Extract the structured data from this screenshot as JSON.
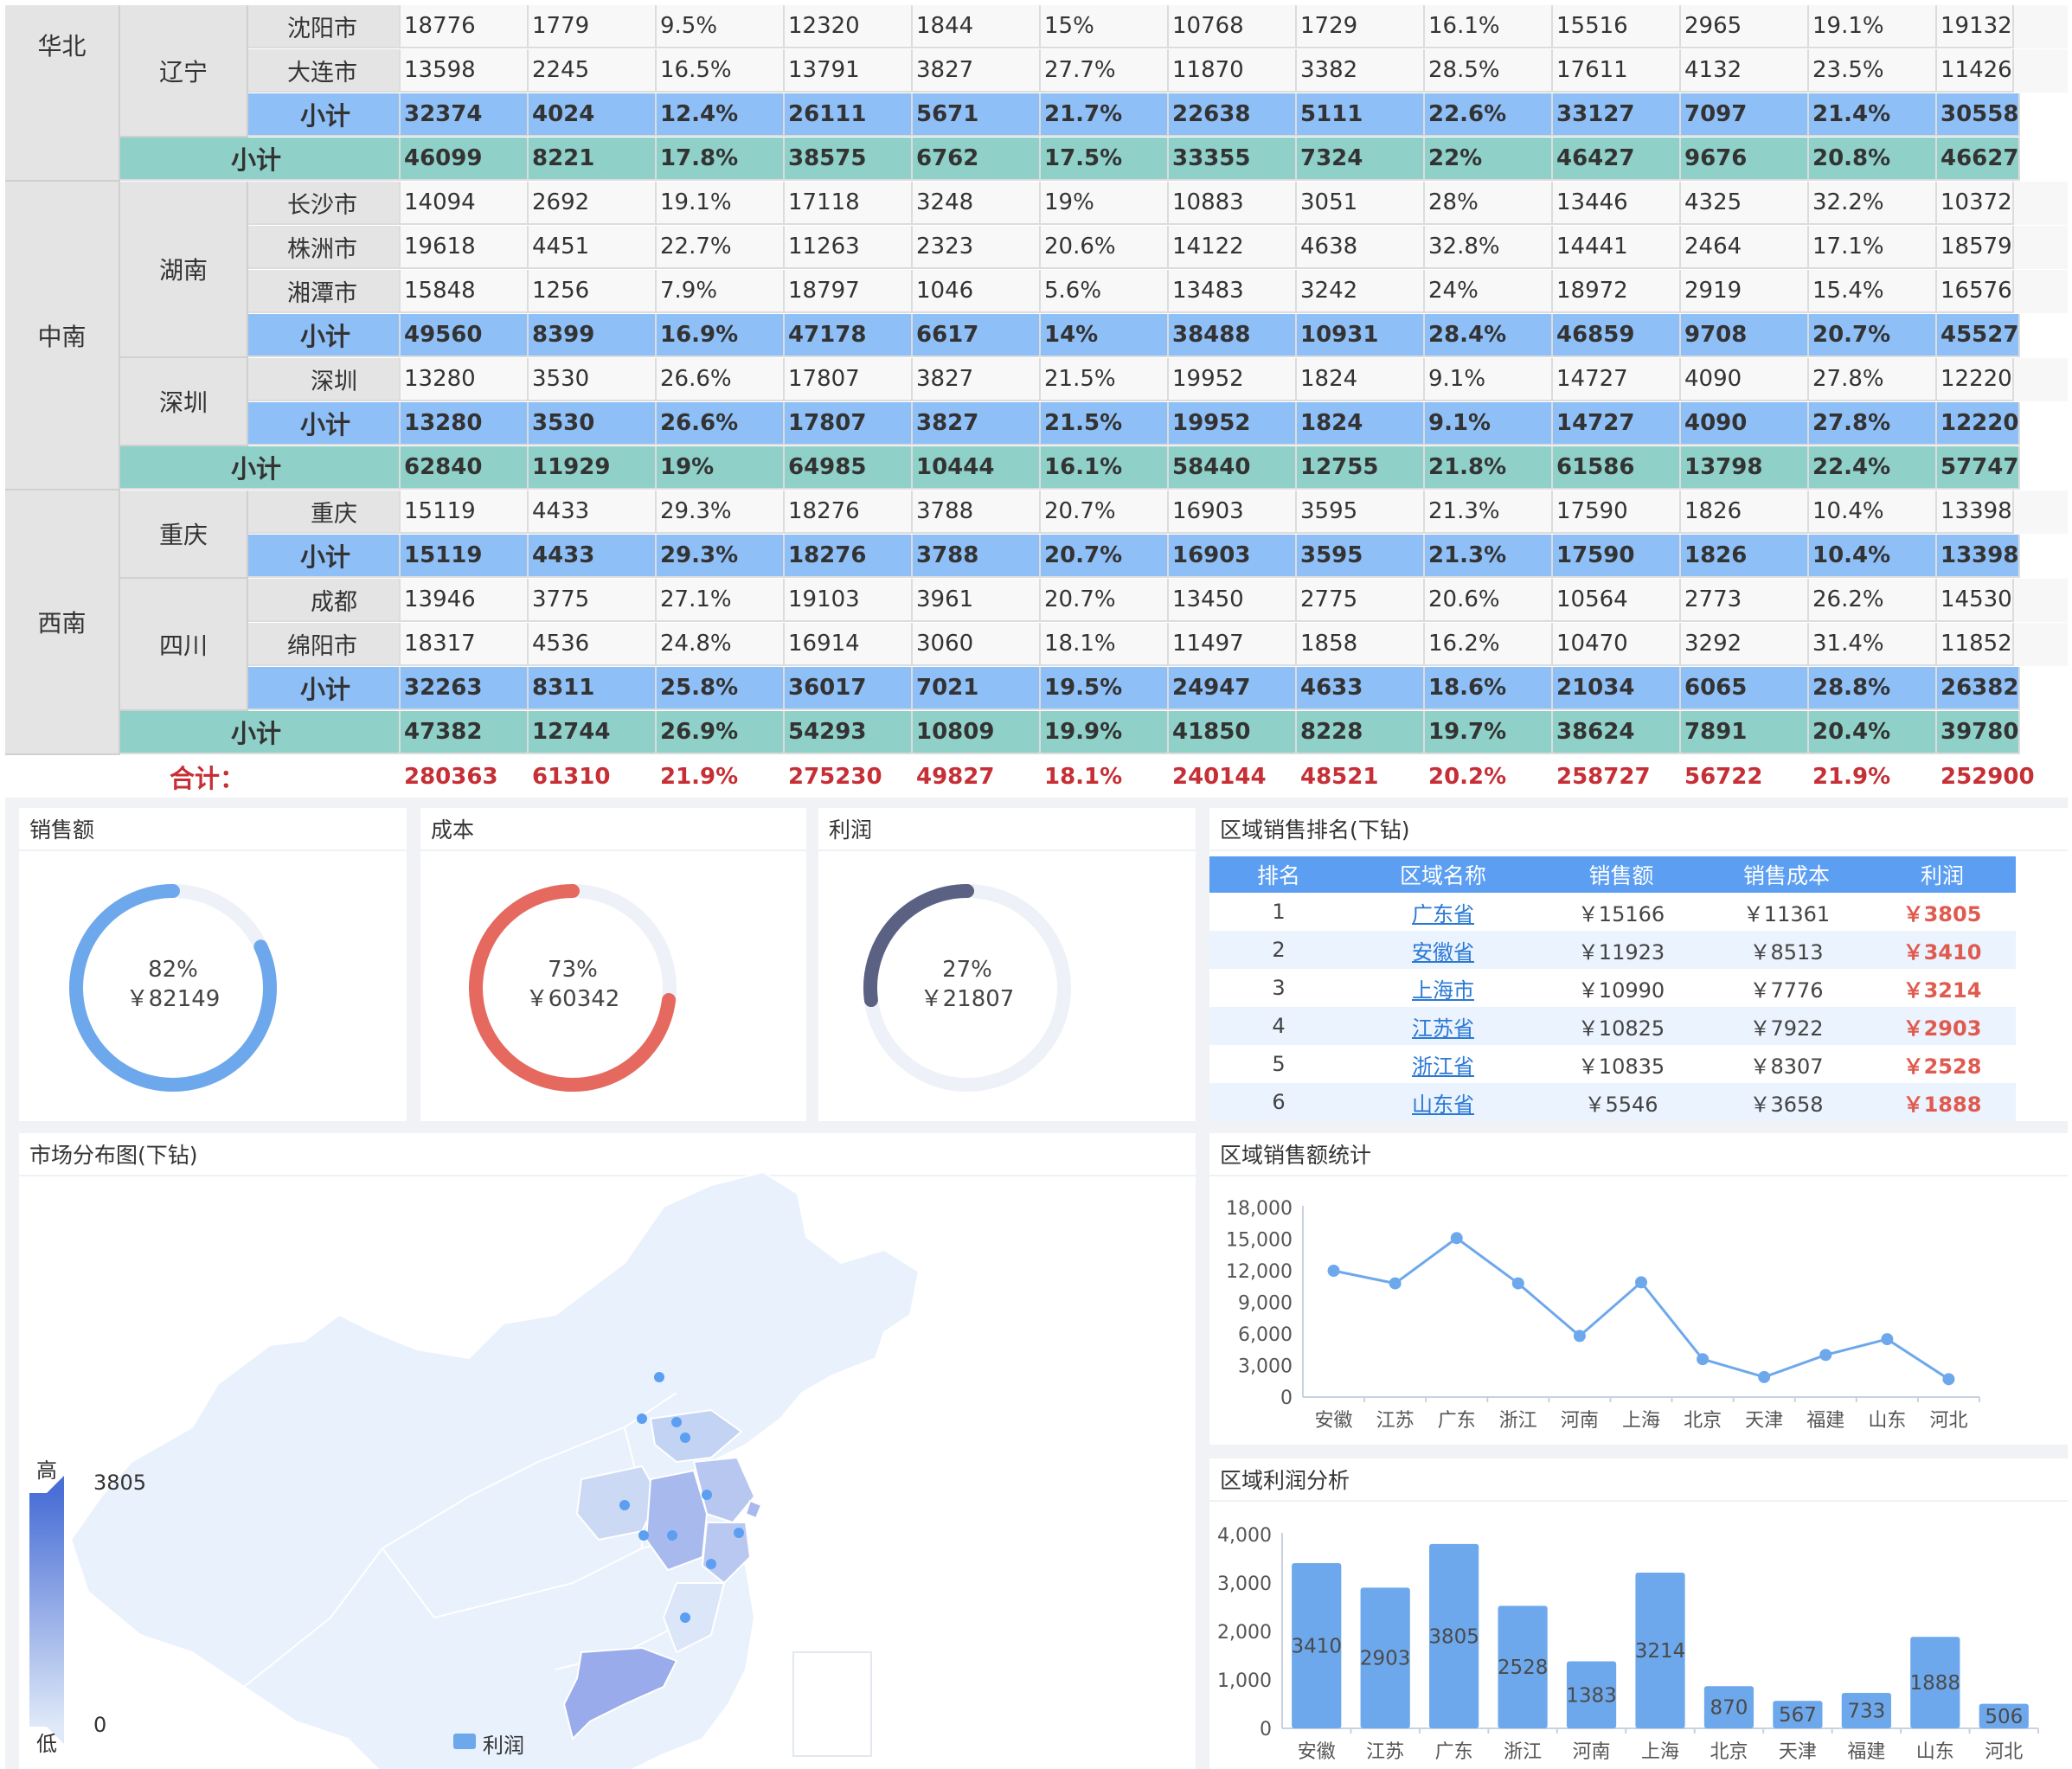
{
  "table": {
    "spans": {
      "regions": [
        {
          "name": "华北",
          "top": 0,
          "rows": 4
        },
        {
          "name": "中南",
          "top": 4,
          "rows": 7
        },
        {
          "name": "西南",
          "top": 11,
          "rows": 6
        }
      ],
      "provinces": [
        {
          "name": "辽宁",
          "top": 0,
          "rows": 3
        },
        {
          "name": "湖南",
          "top": 4,
          "rows": 4
        },
        {
          "name": "深圳",
          "top": 8,
          "rows": 2
        },
        {
          "name": "重庆",
          "top": 11,
          "rows": 2
        },
        {
          "name": "四川",
          "top": 13,
          "rows": 3
        }
      ]
    },
    "rows": [
      {
        "type": "data",
        "label": "沈阳市",
        "values": [
          "18776",
          "1779",
          "9.5%",
          "12320",
          "1844",
          "15%",
          "10768",
          "1729",
          "16.1%",
          "15516",
          "2965",
          "19.1%",
          "19132"
        ]
      },
      {
        "type": "data",
        "label": "大连市",
        "values": [
          "13598",
          "2245",
          "16.5%",
          "13791",
          "3827",
          "27.7%",
          "11870",
          "3382",
          "28.5%",
          "17611",
          "4132",
          "23.5%",
          "11426"
        ]
      },
      {
        "type": "sub",
        "label": "小计",
        "values": [
          "32374",
          "4024",
          "12.4%",
          "26111",
          "5671",
          "21.7%",
          "22638",
          "5111",
          "22.6%",
          "33127",
          "7097",
          "21.4%",
          "30558"
        ]
      },
      {
        "type": "psub",
        "label": "小计",
        "values": [
          "46099",
          "8221",
          "17.8%",
          "38575",
          "6762",
          "17.5%",
          "33355",
          "7324",
          "22%",
          "46427",
          "9676",
          "20.8%",
          "46627"
        ]
      },
      {
        "type": "data",
        "label": "长沙市",
        "values": [
          "14094",
          "2692",
          "19.1%",
          "17118",
          "3248",
          "19%",
          "10883",
          "3051",
          "28%",
          "13446",
          "4325",
          "32.2%",
          "10372"
        ]
      },
      {
        "type": "data",
        "label": "株洲市",
        "values": [
          "19618",
          "4451",
          "22.7%",
          "11263",
          "2323",
          "20.6%",
          "14122",
          "4638",
          "32.8%",
          "14441",
          "2464",
          "17.1%",
          "18579"
        ]
      },
      {
        "type": "data",
        "label": "湘潭市",
        "values": [
          "15848",
          "1256",
          "7.9%",
          "18797",
          "1046",
          "5.6%",
          "13483",
          "3242",
          "24%",
          "18972",
          "2919",
          "15.4%",
          "16576"
        ]
      },
      {
        "type": "sub",
        "label": "小计",
        "values": [
          "49560",
          "8399",
          "16.9%",
          "47178",
          "6617",
          "14%",
          "38488",
          "10931",
          "28.4%",
          "46859",
          "9708",
          "20.7%",
          "45527"
        ]
      },
      {
        "type": "data",
        "label": "深圳",
        "values": [
          "13280",
          "3530",
          "26.6%",
          "17807",
          "3827",
          "21.5%",
          "19952",
          "1824",
          "9.1%",
          "14727",
          "4090",
          "27.8%",
          "12220"
        ]
      },
      {
        "type": "sub",
        "label": "小计",
        "values": [
          "13280",
          "3530",
          "26.6%",
          "17807",
          "3827",
          "21.5%",
          "19952",
          "1824",
          "9.1%",
          "14727",
          "4090",
          "27.8%",
          "12220"
        ]
      },
      {
        "type": "psub",
        "label": "小计",
        "values": [
          "62840",
          "11929",
          "19%",
          "64985",
          "10444",
          "16.1%",
          "58440",
          "12755",
          "21.8%",
          "61586",
          "13798",
          "22.4%",
          "57747"
        ]
      },
      {
        "type": "data",
        "label": "重庆",
        "values": [
          "15119",
          "4433",
          "29.3%",
          "18276",
          "3788",
          "20.7%",
          "16903",
          "3595",
          "21.3%",
          "17590",
          "1826",
          "10.4%",
          "13398"
        ]
      },
      {
        "type": "sub",
        "label": "小计",
        "values": [
          "15119",
          "4433",
          "29.3%",
          "18276",
          "3788",
          "20.7%",
          "16903",
          "3595",
          "21.3%",
          "17590",
          "1826",
          "10.4%",
          "13398"
        ]
      },
      {
        "type": "data",
        "label": "成都",
        "values": [
          "13946",
          "3775",
          "27.1%",
          "19103",
          "3961",
          "20.7%",
          "13450",
          "2775",
          "20.6%",
          "10564",
          "2773",
          "26.2%",
          "14530"
        ]
      },
      {
        "type": "data",
        "label": "绵阳市",
        "values": [
          "18317",
          "4536",
          "24.8%",
          "16914",
          "3060",
          "18.1%",
          "11497",
          "1858",
          "16.2%",
          "10470",
          "3292",
          "31.4%",
          "11852"
        ]
      },
      {
        "type": "sub",
        "label": "小计",
        "values": [
          "32263",
          "8311",
          "25.8%",
          "36017",
          "7021",
          "19.5%",
          "24947",
          "4633",
          "18.6%",
          "21034",
          "6065",
          "28.8%",
          "26382"
        ]
      },
      {
        "type": "psub",
        "label": "小计",
        "values": [
          "47382",
          "12744",
          "26.9%",
          "54293",
          "10809",
          "19.9%",
          "41850",
          "8228",
          "19.7%",
          "38624",
          "7891",
          "20.4%",
          "39780"
        ]
      },
      {
        "type": "total",
        "label": "合计：",
        "values": [
          "280363",
          "61310",
          "21.9%",
          "275230",
          "49827",
          "18.1%",
          "240144",
          "48521",
          "20.2%",
          "258727",
          "56722",
          "21.9%",
          "252900"
        ]
      }
    ]
  },
  "kpis": [
    {
      "title": "销售额",
      "percent": "82%",
      "amount": "￥82149",
      "fraction": 0.82,
      "color": "#6ea8ec"
    },
    {
      "title": "成本",
      "percent": "73%",
      "amount": "￥60342",
      "fraction": 0.73,
      "color": "#e5695f"
    },
    {
      "title": "利润",
      "percent": "27%",
      "amount": "￥21807",
      "fraction": 0.27,
      "color": "#5a6183"
    }
  ],
  "ranking": {
    "title": "区域销售排名(下钻)",
    "headers": [
      "排名",
      "区域名称",
      "销售额",
      "销售成本",
      "利润"
    ],
    "rows": [
      {
        "rank": "1",
        "name": "广东省",
        "sales": "￥15166",
        "cost": "￥11361",
        "profit": "￥3805"
      },
      {
        "rank": "2",
        "name": "安徽省",
        "sales": "￥11923",
        "cost": "￥8513",
        "profit": "￥3410"
      },
      {
        "rank": "3",
        "name": "上海市",
        "sales": "￥10990",
        "cost": "￥7776",
        "profit": "￥3214"
      },
      {
        "rank": "4",
        "name": "江苏省",
        "sales": "￥10825",
        "cost": "￥7922",
        "profit": "￥2903"
      },
      {
        "rank": "5",
        "name": "浙江省",
        "sales": "￥10835",
        "cost": "￥8307",
        "profit": "￥2528"
      },
      {
        "rank": "6",
        "name": "山东省",
        "sales": "￥5546",
        "cost": "￥3658",
        "profit": "￥1888"
      }
    ]
  },
  "map": {
    "title": "市场分布图(下钻)",
    "legend_high": "高",
    "legend_low": "低",
    "legend_max": "3805",
    "legend_min": "0",
    "series_label": "利润"
  },
  "chart_data": [
    {
      "type": "line",
      "title": "区域销售额统计",
      "categories": [
        "安徽",
        "江苏",
        "广东",
        "浙江",
        "河南",
        "上海",
        "北京",
        "天津",
        "福建",
        "山东",
        "河北"
      ],
      "values": [
        12000,
        10800,
        15100,
        10800,
        5800,
        10900,
        3600,
        1900,
        4000,
        5500,
        1700
      ],
      "ylim": [
        0,
        18000
      ],
      "yticks": [
        "0",
        "3,000",
        "6,000",
        "9,000",
        "12,000",
        "15,000",
        "18,000"
      ],
      "color": "#6ea8ec"
    },
    {
      "type": "bar",
      "title": "区域利润分析",
      "categories": [
        "安徽",
        "江苏",
        "广东",
        "浙江",
        "河南",
        "上海",
        "北京",
        "天津",
        "福建",
        "山东",
        "河北"
      ],
      "values": [
        3410,
        2903,
        3805,
        2528,
        1383,
        3214,
        870,
        567,
        733,
        1888,
        506
      ],
      "labels": [
        "3410",
        "2903",
        "3805",
        "2528",
        "1383",
        "3214",
        "870",
        "567",
        "733",
        "1888",
        "506"
      ],
      "ylim": [
        0,
        4000
      ],
      "yticks": [
        "0",
        "1,000",
        "2,000",
        "3,000",
        "4,000"
      ],
      "color": "#6ea8ec"
    }
  ]
}
